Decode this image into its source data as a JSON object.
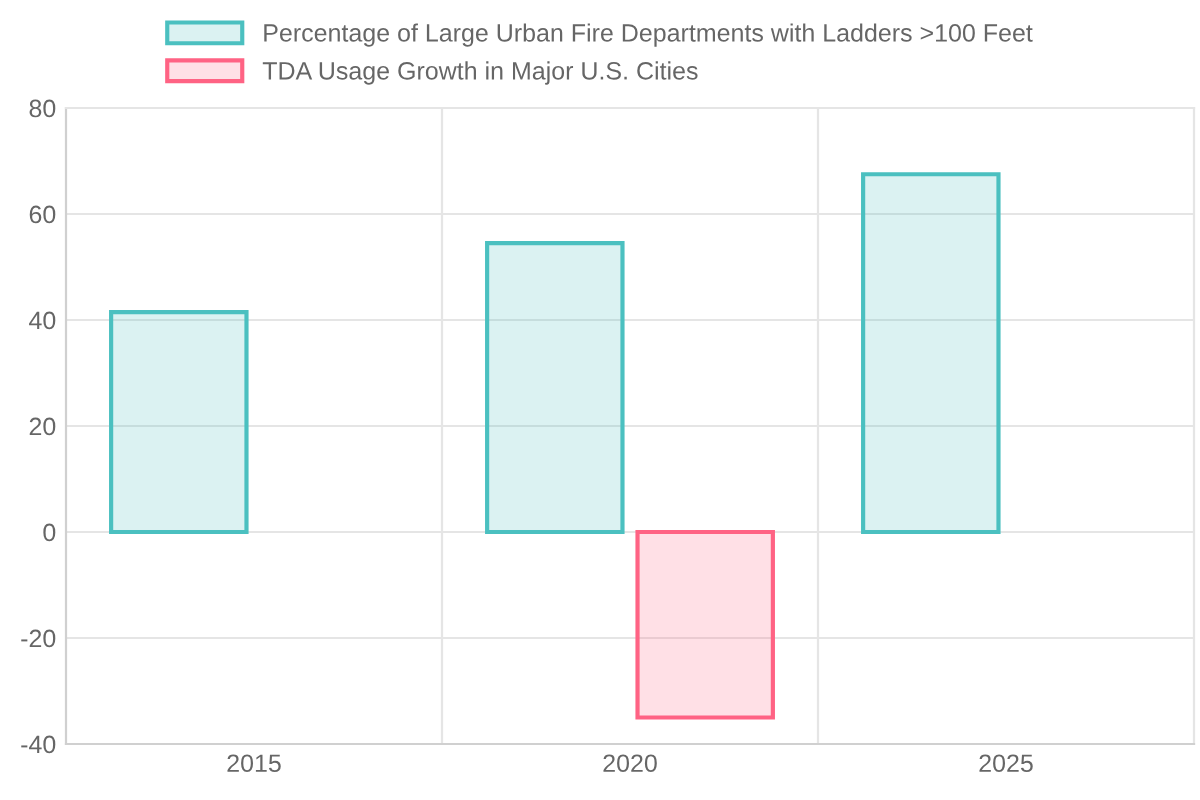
{
  "chart_data": {
    "type": "bar",
    "categories": [
      "2015",
      "2020",
      "2025"
    ],
    "series": [
      {
        "name": "Percentage of Large Urban Fire Departments with Ladders >100 Feet",
        "color": "#4bc0c0",
        "values": [
          41.5,
          54.5,
          67.5
        ]
      },
      {
        "name": "TDA Usage Growth in Major U.S. Cities",
        "color": "#ff6384",
        "values": [
          null,
          -35,
          null
        ]
      }
    ],
    "ylim": [
      -40,
      80
    ],
    "yticks": [
      -40,
      -20,
      0,
      20,
      40,
      60,
      80
    ],
    "grid": true,
    "legend": "top"
  }
}
